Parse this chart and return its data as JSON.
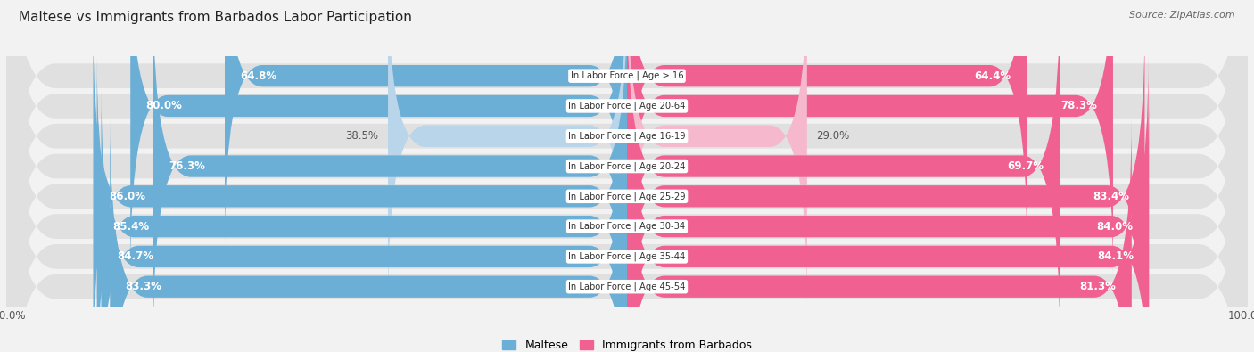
{
  "title": "Maltese vs Immigrants from Barbados Labor Participation",
  "source": "Source: ZipAtlas.com",
  "categories": [
    "In Labor Force | Age > 16",
    "In Labor Force | Age 20-64",
    "In Labor Force | Age 16-19",
    "In Labor Force | Age 20-24",
    "In Labor Force | Age 25-29",
    "In Labor Force | Age 30-34",
    "In Labor Force | Age 35-44",
    "In Labor Force | Age 45-54"
  ],
  "maltese_values": [
    64.8,
    80.0,
    38.5,
    76.3,
    86.0,
    85.4,
    84.7,
    83.3
  ],
  "barbados_values": [
    64.4,
    78.3,
    29.0,
    69.7,
    83.4,
    84.0,
    84.1,
    81.3
  ],
  "maltese_color": "#6baed6",
  "maltese_color_light": "#b8d5ea",
  "barbados_color": "#f06090",
  "barbados_color_light": "#f5b8cc",
  "bg_color": "#f2f2f2",
  "row_bg_color": "#e0e0e0",
  "legend_maltese": "Maltese",
  "legend_barbados": "Immigrants from Barbados",
  "light_threshold": 50
}
